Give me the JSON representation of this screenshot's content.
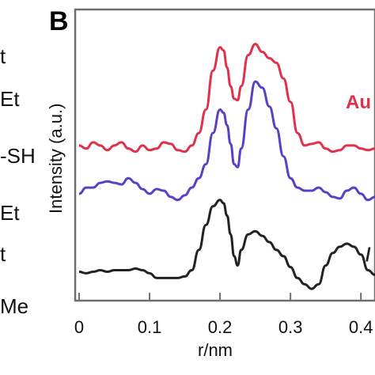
{
  "panel_label": "B",
  "left_cut_labels": [
    "t",
    "Et",
    "-SH",
    "Et",
    "t",
    "Me"
  ],
  "series_labels": [
    {
      "text": "Au",
      "color": "#e0314a"
    },
    {
      "text": "",
      "color": "#5b3fc4"
    },
    {
      "text": "/",
      "color": "#222222"
    }
  ],
  "chart_data": {
    "type": "line",
    "title": "",
    "xlabel": "r/nm",
    "ylabel": "Intensity (a.u.)",
    "xlim": [
      0,
      0.42
    ],
    "x_ticks": [
      "0",
      "0.1",
      "0.2",
      "0.3",
      "0.4"
    ],
    "x_tick_values": [
      0,
      0.1,
      0.2,
      0.3,
      0.4
    ],
    "grid": false,
    "series": [
      {
        "color": "#e0314a",
        "points": [
          [
            0.0,
            0.47
          ],
          [
            0.01,
            0.45
          ],
          [
            0.02,
            0.49
          ],
          [
            0.03,
            0.47
          ],
          [
            0.04,
            0.44
          ],
          [
            0.05,
            0.47
          ],
          [
            0.06,
            0.49
          ],
          [
            0.07,
            0.45
          ],
          [
            0.08,
            0.43
          ],
          [
            0.09,
            0.47
          ],
          [
            0.1,
            0.44
          ],
          [
            0.11,
            0.45
          ],
          [
            0.12,
            0.49
          ],
          [
            0.13,
            0.48
          ],
          [
            0.14,
            0.44
          ],
          [
            0.15,
            0.43
          ],
          [
            0.16,
            0.47
          ],
          [
            0.17,
            0.55
          ],
          [
            0.18,
            0.7
          ],
          [
            0.19,
            0.95
          ],
          [
            0.2,
            1.1
          ],
          [
            0.205,
            1.08
          ],
          [
            0.21,
            0.97
          ],
          [
            0.215,
            0.85
          ],
          [
            0.22,
            0.77
          ],
          [
            0.225,
            0.76
          ],
          [
            0.23,
            0.85
          ],
          [
            0.24,
            1.05
          ],
          [
            0.25,
            1.12
          ],
          [
            0.26,
            1.07
          ],
          [
            0.27,
            1.03
          ],
          [
            0.28,
            1.0
          ],
          [
            0.29,
            0.9
          ],
          [
            0.3,
            0.75
          ],
          [
            0.31,
            0.55
          ],
          [
            0.32,
            0.47
          ],
          [
            0.33,
            0.48
          ],
          [
            0.34,
            0.49
          ],
          [
            0.35,
            0.45
          ],
          [
            0.36,
            0.43
          ],
          [
            0.37,
            0.44
          ],
          [
            0.38,
            0.47
          ],
          [
            0.39,
            0.47
          ],
          [
            0.4,
            0.45
          ],
          [
            0.41,
            0.44
          ],
          [
            0.42,
            0.45
          ]
        ]
      },
      {
        "color": "#5b3fc4",
        "points": [
          [
            0.0,
            0.16
          ],
          [
            0.01,
            0.2
          ],
          [
            0.02,
            0.2
          ],
          [
            0.03,
            0.23
          ],
          [
            0.04,
            0.24
          ],
          [
            0.05,
            0.23
          ],
          [
            0.06,
            0.22
          ],
          [
            0.07,
            0.26
          ],
          [
            0.08,
            0.23
          ],
          [
            0.09,
            0.19
          ],
          [
            0.1,
            0.16
          ],
          [
            0.11,
            0.19
          ],
          [
            0.12,
            0.18
          ],
          [
            0.13,
            0.14
          ],
          [
            0.14,
            0.12
          ],
          [
            0.15,
            0.15
          ],
          [
            0.16,
            0.2
          ],
          [
            0.17,
            0.26
          ],
          [
            0.18,
            0.35
          ],
          [
            0.19,
            0.55
          ],
          [
            0.2,
            0.7
          ],
          [
            0.205,
            0.68
          ],
          [
            0.21,
            0.6
          ],
          [
            0.215,
            0.48
          ],
          [
            0.22,
            0.35
          ],
          [
            0.225,
            0.33
          ],
          [
            0.23,
            0.45
          ],
          [
            0.24,
            0.7
          ],
          [
            0.25,
            0.88
          ],
          [
            0.26,
            0.84
          ],
          [
            0.27,
            0.72
          ],
          [
            0.28,
            0.58
          ],
          [
            0.29,
            0.4
          ],
          [
            0.3,
            0.26
          ],
          [
            0.31,
            0.2
          ],
          [
            0.32,
            0.18
          ],
          [
            0.33,
            0.18
          ],
          [
            0.34,
            0.2
          ],
          [
            0.35,
            0.17
          ],
          [
            0.36,
            0.14
          ],
          [
            0.37,
            0.13
          ],
          [
            0.38,
            0.18
          ],
          [
            0.39,
            0.2
          ],
          [
            0.4,
            0.16
          ],
          [
            0.41,
            0.12
          ],
          [
            0.42,
            0.14
          ]
        ]
      },
      {
        "color": "#222222",
        "points": [
          [
            0.0,
            -0.34
          ],
          [
            0.01,
            -0.35
          ],
          [
            0.02,
            -0.34
          ],
          [
            0.03,
            -0.33
          ],
          [
            0.04,
            -0.34
          ],
          [
            0.05,
            -0.33
          ],
          [
            0.06,
            -0.33
          ],
          [
            0.07,
            -0.33
          ],
          [
            0.08,
            -0.32
          ],
          [
            0.09,
            -0.33
          ],
          [
            0.1,
            -0.35
          ],
          [
            0.11,
            -0.38
          ],
          [
            0.12,
            -0.38
          ],
          [
            0.13,
            -0.38
          ],
          [
            0.14,
            -0.38
          ],
          [
            0.15,
            -0.37
          ],
          [
            0.16,
            -0.33
          ],
          [
            0.17,
            -0.2
          ],
          [
            0.18,
            -0.04
          ],
          [
            0.19,
            0.08
          ],
          [
            0.2,
            0.12
          ],
          [
            0.205,
            0.1
          ],
          [
            0.21,
            0.02
          ],
          [
            0.215,
            -0.1
          ],
          [
            0.22,
            -0.24
          ],
          [
            0.225,
            -0.3
          ],
          [
            0.23,
            -0.2
          ],
          [
            0.24,
            -0.1
          ],
          [
            0.25,
            -0.08
          ],
          [
            0.26,
            -0.11
          ],
          [
            0.27,
            -0.15
          ],
          [
            0.28,
            -0.2
          ],
          [
            0.29,
            -0.24
          ],
          [
            0.3,
            -0.31
          ],
          [
            0.31,
            -0.38
          ],
          [
            0.32,
            -0.42
          ],
          [
            0.33,
            -0.45
          ],
          [
            0.34,
            -0.42
          ],
          [
            0.35,
            -0.3
          ],
          [
            0.36,
            -0.22
          ],
          [
            0.37,
            -0.18
          ],
          [
            0.38,
            -0.16
          ],
          [
            0.39,
            -0.18
          ],
          [
            0.4,
            -0.23
          ],
          [
            0.41,
            -0.33
          ],
          [
            0.42,
            -0.36
          ]
        ]
      }
    ]
  }
}
